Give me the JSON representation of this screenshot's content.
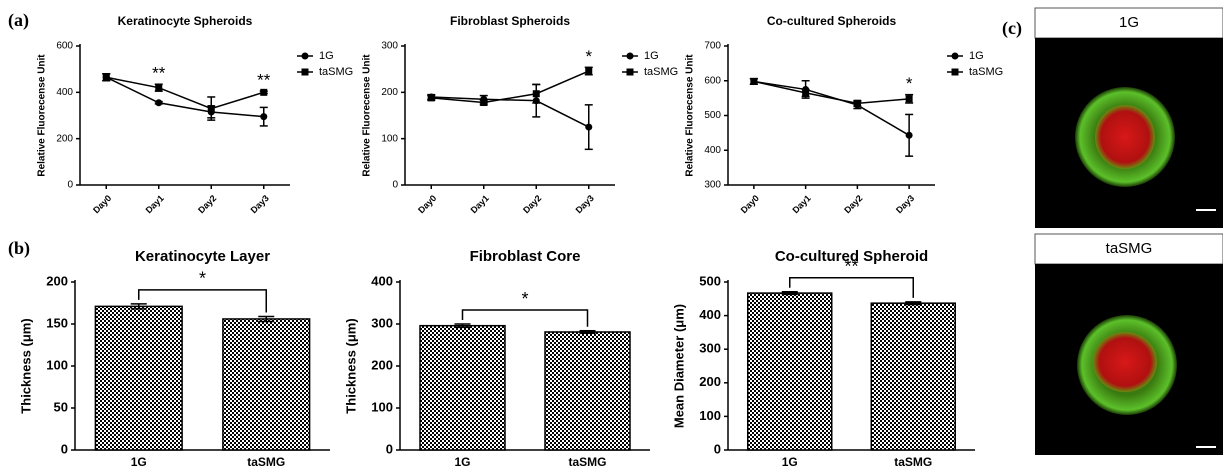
{
  "panel_labels": [
    "(a)",
    "(b)",
    "(c)"
  ],
  "micrographs": [
    {
      "label": "1G"
    },
    {
      "label": "taSMG"
    }
  ],
  "chart_data": [
    {
      "type": "line",
      "title": "Keratinocyte Spheroids",
      "ylabel": "Relative Fluorecense Unit",
      "categories": [
        "Day0",
        "Day1",
        "Day2",
        "Day3"
      ],
      "series": [
        {
          "name": "1G",
          "color": "#000000",
          "marker": "circle",
          "values": [
            465,
            355,
            315,
            295
          ],
          "errors": [
            15,
            5,
            25,
            40
          ]
        },
        {
          "name": "taSMG",
          "color": "#000000",
          "marker": "square",
          "values": [
            465,
            420,
            330,
            400
          ],
          "errors": [
            15,
            15,
            50,
            5
          ]
        }
      ],
      "ylim": [
        0,
        600
      ],
      "yticks": [
        0,
        200,
        400,
        600
      ],
      "annotations": [
        {
          "text": "**",
          "category": "Day1"
        },
        {
          "text": "**",
          "category": "Day3"
        }
      ]
    },
    {
      "type": "line",
      "title": "Fibroblast Spheroids",
      "ylabel": "Relative Fluorecense Unit",
      "categories": [
        "Day0",
        "Day1",
        "Day2",
        "Day3"
      ],
      "series": [
        {
          "name": "1G",
          "color": "#000000",
          "marker": "circle",
          "values": [
            190,
            185,
            182,
            125
          ],
          "errors": [
            5,
            8,
            35,
            48
          ]
        },
        {
          "name": "taSMG",
          "color": "#000000",
          "marker": "square",
          "values": [
            188,
            178,
            197,
            246
          ],
          "errors": [
            5,
            5,
            20,
            8
          ]
        }
      ],
      "ylim": [
        0,
        300
      ],
      "yticks": [
        0,
        100,
        200,
        300
      ],
      "annotations": [
        {
          "text": "*",
          "category": "Day3"
        }
      ]
    },
    {
      "type": "line",
      "title": "Co-cultured Spheroids",
      "ylabel": "Relative Fluorecense Unit",
      "categories": [
        "Day0",
        "Day1",
        "Day2",
        "Day3"
      ],
      "series": [
        {
          "name": "1G",
          "color": "#000000",
          "marker": "circle",
          "values": [
            598,
            575,
            530,
            443
          ],
          "errors": [
            8,
            25,
            10,
            60
          ]
        },
        {
          "name": "taSMG",
          "color": "#000000",
          "marker": "square",
          "values": [
            598,
            565,
            535,
            548
          ],
          "errors": [
            8,
            10,
            8,
            12
          ]
        }
      ],
      "ylim": [
        300,
        700
      ],
      "yticks": [
        300,
        400,
        500,
        600,
        700
      ],
      "annotations": [
        {
          "text": "*",
          "category": "Day3"
        }
      ]
    },
    {
      "type": "bar",
      "title": "Keratinocyte Layer",
      "ylabel": "Thickness (μm)",
      "categories": [
        "1G",
        "taSMG"
      ],
      "values": [
        171,
        156
      ],
      "errors": [
        3,
        3
      ],
      "ylim": [
        0,
        200
      ],
      "yticks": [
        0,
        50,
        100,
        150,
        200
      ],
      "annotations": [
        {
          "text": "*"
        }
      ]
    },
    {
      "type": "bar",
      "title": "Fibroblast Core",
      "ylabel": "Thickness (μm)",
      "categories": [
        "1G",
        "taSMG"
      ],
      "values": [
        296,
        281
      ],
      "errors": [
        4,
        3
      ],
      "ylim": [
        0,
        400
      ],
      "yticks": [
        0,
        100,
        200,
        300,
        400
      ],
      "annotations": [
        {
          "text": "*"
        }
      ]
    },
    {
      "type": "bar",
      "title": "Co-cultured Spheroid",
      "ylabel": "Mean Diameter (μm)",
      "categories": [
        "1G",
        "taSMG"
      ],
      "values": [
        467,
        437
      ],
      "errors": [
        4,
        4
      ],
      "ylim": [
        0,
        500
      ],
      "yticks": [
        0,
        100,
        200,
        300,
        400,
        500
      ],
      "annotations": [
        {
          "text": "**"
        }
      ]
    }
  ]
}
